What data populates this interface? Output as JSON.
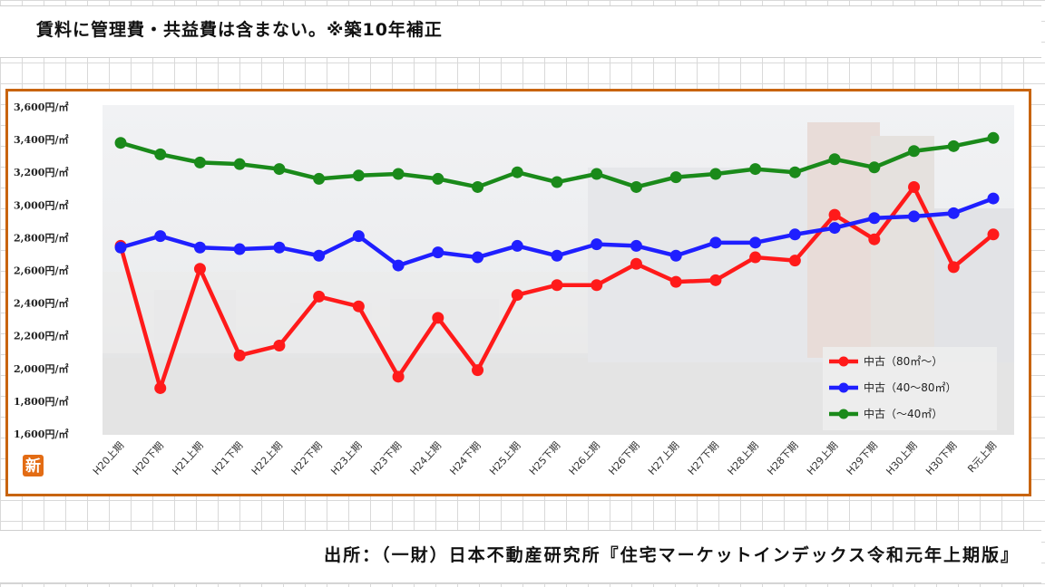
{
  "header": {
    "note": "賃料に管理費・共益費は含まない。※築10年補正"
  },
  "footer": {
    "source": "出所：（一財）日本不動産研究所『住宅マーケットインデックス令和元年上期版』"
  },
  "badge": {
    "text": "新"
  },
  "colors": {
    "frame": "#c8640f",
    "red": "#ff1a1a",
    "blue": "#1f1fff",
    "green": "#1a8a1a"
  },
  "chart_data": {
    "type": "line",
    "title": "",
    "xlabel": "",
    "ylabel": "",
    "ylim": [
      1600,
      3600
    ],
    "yticks": [
      1600,
      1800,
      2000,
      2200,
      2400,
      2600,
      2800,
      3000,
      3200,
      3400,
      3600
    ],
    "ytick_labels": [
      "1,600円/㎡",
      "1,800円/㎡",
      "2,000円/㎡",
      "2,200円/㎡",
      "2,400円/㎡",
      "2,600円/㎡",
      "2,800円/㎡",
      "3,000円/㎡",
      "3,200円/㎡",
      "3,400円/㎡",
      "3,600円/㎡"
    ],
    "categories": [
      "H20上期",
      "H20下期",
      "H21上期",
      "H21下期",
      "H22上期",
      "H22下期",
      "H23上期",
      "H23下期",
      "H24上期",
      "H24下期",
      "H25上期",
      "H25下期",
      "H26上期",
      "H26下期",
      "H27上期",
      "H27下期",
      "H28上期",
      "H28下期",
      "H29上期",
      "H29下期",
      "H30上期",
      "H30下期",
      "R元上期"
    ],
    "grid": false,
    "legend": "bottom-right",
    "series": [
      {
        "name": "中古（80㎡～）",
        "color": "#ff1a1a",
        "values": [
          2750,
          1880,
          2610,
          2080,
          2140,
          2440,
          2380,
          1950,
          2310,
          1990,
          2450,
          2510,
          2510,
          2640,
          2530,
          2540,
          2680,
          2660,
          2940,
          2790,
          3110,
          2620,
          2820
        ]
      },
      {
        "name": "中古（40～80㎡）",
        "color": "#1f1fff",
        "values": [
          2740,
          2810,
          2740,
          2730,
          2740,
          2690,
          2810,
          2630,
          2710,
          2680,
          2750,
          2690,
          2760,
          2750,
          2690,
          2770,
          2770,
          2820,
          2860,
          2920,
          2930,
          2950,
          3040
        ]
      },
      {
        "name": "中古（～40㎡）",
        "color": "#1a8a1a",
        "values": [
          3380,
          3310,
          3260,
          3250,
          3220,
          3160,
          3180,
          3190,
          3160,
          3110,
          3200,
          3140,
          3190,
          3110,
          3170,
          3190,
          3220,
          3200,
          3280,
          3230,
          3330,
          3360,
          3410
        ]
      }
    ]
  }
}
